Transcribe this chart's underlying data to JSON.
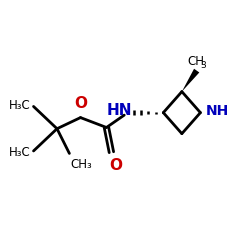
{
  "bg_color": "#ffffff",
  "bond_color": "#000000",
  "N_color": "#0000bb",
  "O_color": "#cc0000",
  "fig_size": [
    2.5,
    2.5
  ],
  "dpi": 100,
  "xlim": [
    0,
    10
  ],
  "ylim": [
    0,
    10
  ]
}
